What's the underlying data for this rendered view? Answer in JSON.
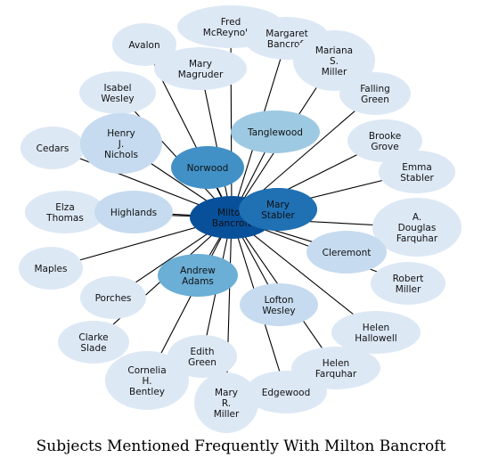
{
  "caption": "Subjects Mentioned Frequently With Milton Bancroft",
  "colors": {
    "edge": "#000000",
    "text": "#111111"
  },
  "center": {
    "id": "milton",
    "label": "Milton Bancroft",
    "shade": "#08509a"
  },
  "nodes": [
    {
      "id": "fred",
      "label": "Fred McReynolds",
      "shade": "#dde8f5"
    },
    {
      "id": "margaret",
      "label": "Margaret Bancroft",
      "shade": "#dde8f5"
    },
    {
      "id": "avalon",
      "label": "Avalon",
      "shade": "#dde8f5"
    },
    {
      "id": "mariana",
      "label": "Mariana S. Miller",
      "shade": "#dde8f5"
    },
    {
      "id": "mary-magruder",
      "label": "Mary Magruder",
      "shade": "#dde8f5"
    },
    {
      "id": "falling-green",
      "label": "Falling Green",
      "shade": "#dde8f5"
    },
    {
      "id": "isabel",
      "label": "Isabel Wesley",
      "shade": "#dde8f5"
    },
    {
      "id": "tanglewood",
      "label": "Tanglewood",
      "shade": "#9ec9e2"
    },
    {
      "id": "henry",
      "label": "Henry J. Nichols",
      "shade": "#c6dbef"
    },
    {
      "id": "brooke",
      "label": "Brooke Grove",
      "shade": "#dde8f5"
    },
    {
      "id": "cedars",
      "label": "Cedars",
      "shade": "#dde8f5"
    },
    {
      "id": "norwood",
      "label": "Norwood",
      "shade": "#4191c6"
    },
    {
      "id": "emma",
      "label": "Emma Stabler",
      "shade": "#dde8f5"
    },
    {
      "id": "elza",
      "label": "Elza Thomas",
      "shade": "#dde8f5"
    },
    {
      "id": "highlands",
      "label": "Highlands",
      "shade": "#c6dbef"
    },
    {
      "id": "mary-stabler",
      "label": "Mary Stabler",
      "shade": "#2070b4"
    },
    {
      "id": "a-douglas",
      "label": "A. Douglas Farquhar",
      "shade": "#dde8f5"
    },
    {
      "id": "maples",
      "label": "Maples",
      "shade": "#dde8f5"
    },
    {
      "id": "cleremont",
      "label": "Cleremont",
      "shade": "#c6dbef"
    },
    {
      "id": "andrew",
      "label": "Andrew Adams",
      "shade": "#6baed6"
    },
    {
      "id": "porches",
      "label": "Porches",
      "shade": "#dde8f5"
    },
    {
      "id": "robert",
      "label": "Robert Miller",
      "shade": "#dde8f5"
    },
    {
      "id": "lofton",
      "label": "Lofton Wesley",
      "shade": "#c6dbef"
    },
    {
      "id": "clarke",
      "label": "Clarke Slade",
      "shade": "#dde8f5"
    },
    {
      "id": "helen-hallowell",
      "label": "Helen Hallowell",
      "shade": "#dde8f5"
    },
    {
      "id": "edith",
      "label": "Edith Green",
      "shade": "#dde8f5"
    },
    {
      "id": "cornelia",
      "label": "Cornelia H. Bentley",
      "shade": "#dde8f5"
    },
    {
      "id": "helen-farquhar",
      "label": "Helen Farquhar",
      "shade": "#dde8f5"
    },
    {
      "id": "edgewood",
      "label": "Edgewood",
      "shade": "#dde8f5"
    },
    {
      "id": "mary-miller",
      "label": "Mary R. Miller",
      "shade": "#dde8f5"
    }
  ]
}
